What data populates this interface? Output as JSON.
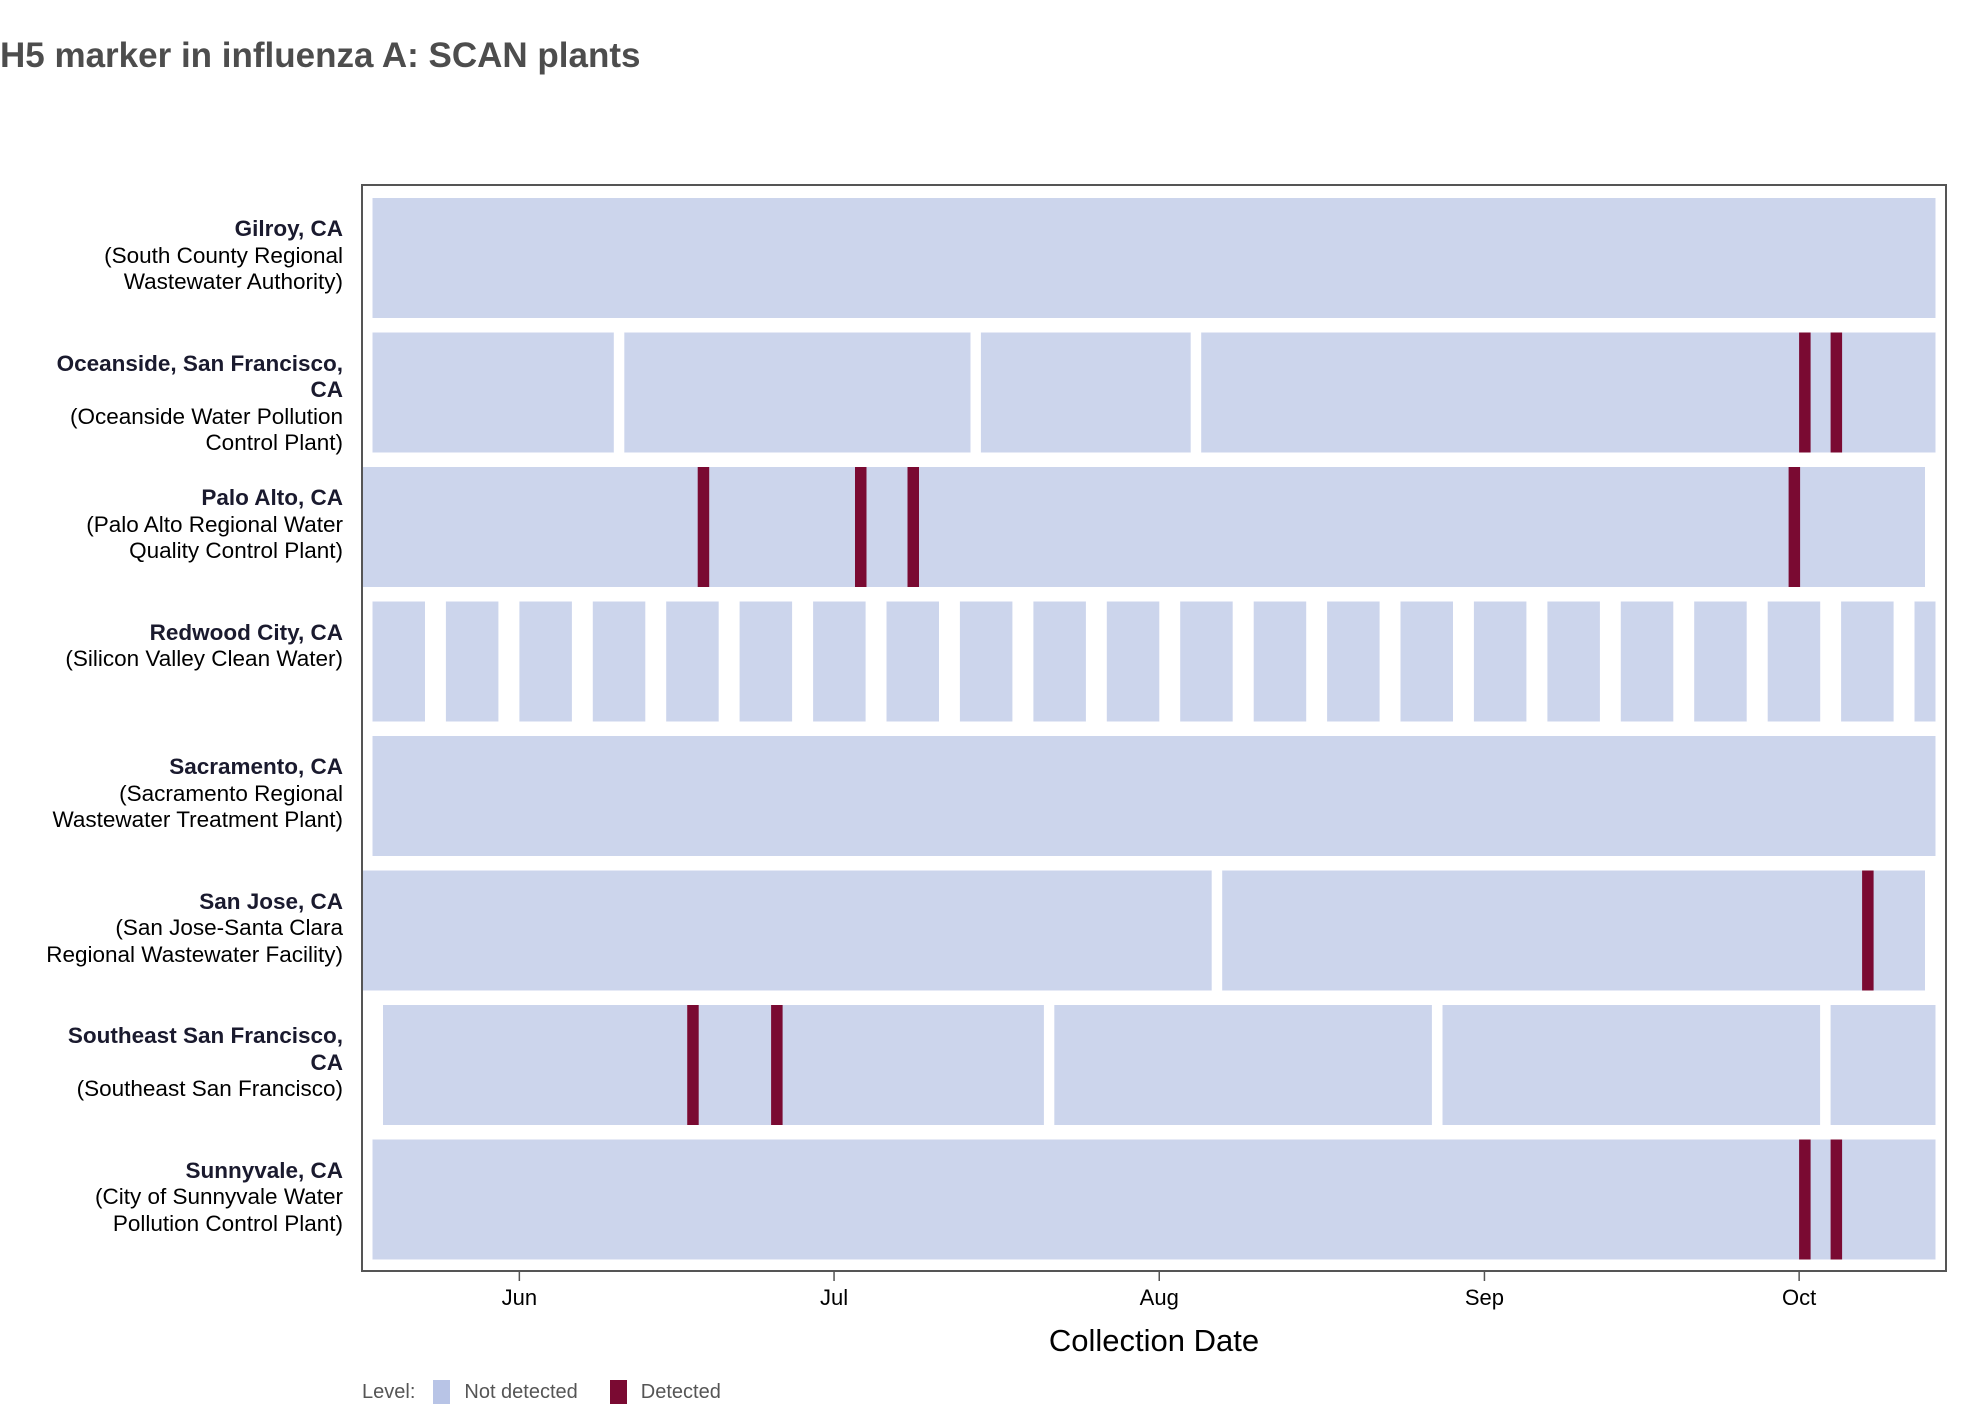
{
  "chart_data": {
    "type": "heatmap",
    "title": "H5 marker in influenza A: SCAN plants",
    "xlabel": "Collection Date",
    "x_domain": [
      "2024-05-17",
      "2024-10-15"
    ],
    "x_ticks": [
      {
        "date": "2024-06-01",
        "label": "Jun"
      },
      {
        "date": "2024-07-01",
        "label": "Jul"
      },
      {
        "date": "2024-08-01",
        "label": "Aug"
      },
      {
        "date": "2024-09-01",
        "label": "Sep"
      },
      {
        "date": "2024-10-01",
        "label": "Oct"
      }
    ],
    "legend": {
      "title": "Level:",
      "items": [
        {
          "label": "Not detected",
          "color": "#b8c4e6"
        },
        {
          "label": "Detected",
          "color": "#7a0a32"
        }
      ]
    },
    "colors": {
      "not_detected": "#ccd5ec",
      "detected": "#7a0a32",
      "frame": "#555555"
    },
    "rows": [
      {
        "site": "Gilroy, CA",
        "plant": "(South County Regional Wastewater Authority)",
        "blocks": [
          [
            "2024-05-18",
            "2024-10-14"
          ]
        ],
        "detected": []
      },
      {
        "site": "Oceanside, San Francisco, CA",
        "plant": "(Oceanside Water Pollution Control Plant)",
        "blocks": [
          [
            "2024-05-18",
            "2024-06-10"
          ],
          [
            "2024-06-11",
            "2024-07-14"
          ],
          [
            "2024-07-15",
            "2024-08-04"
          ],
          [
            "2024-08-05",
            "2024-10-14"
          ]
        ],
        "detected": [
          "2024-10-01",
          "2024-10-04"
        ]
      },
      {
        "site": "Palo Alto, CA",
        "plant": "(Palo Alto Regional Water Quality Control Plant)",
        "blocks": [
          [
            "2024-05-17",
            "2024-10-13"
          ]
        ],
        "detected": [
          "2024-06-18",
          "2024-07-03",
          "2024-07-08",
          "2024-09-30"
        ]
      },
      {
        "site": "Redwood City, CA",
        "plant": "(Silicon Valley Clean Water)",
        "blocks": "weekly",
        "detected": []
      },
      {
        "site": "Sacramento, CA",
        "plant": "(Sacramento Regional Wastewater Treatment Plant)",
        "blocks": [
          [
            "2024-05-18",
            "2024-10-14"
          ]
        ],
        "detected": []
      },
      {
        "site": "San Jose, CA",
        "plant": "(San Jose-Santa Clara Regional Wastewater Facility)",
        "blocks": [
          [
            "2024-05-17",
            "2024-08-06"
          ],
          [
            "2024-08-07",
            "2024-10-13"
          ]
        ],
        "detected": [
          "2024-10-07"
        ]
      },
      {
        "site": "Southeast San Francisco, CA",
        "plant": "(Southeast San Francisco)",
        "blocks": [
          [
            "2024-05-19",
            "2024-06-17"
          ],
          [
            "2024-06-18",
            "2024-07-21"
          ],
          [
            "2024-07-22",
            "2024-08-27"
          ],
          [
            "2024-08-28",
            "2024-10-03"
          ],
          [
            "2024-10-04",
            "2024-10-14"
          ]
        ],
        "detected": [
          "2024-06-17",
          "2024-06-25"
        ]
      },
      {
        "site": "Sunnyvale, CA",
        "plant": "(City of Sunnyvale Water Pollution Control Plant)",
        "blocks": [
          [
            "2024-05-18",
            "2024-10-14"
          ]
        ],
        "detected": [
          "2024-10-01",
          "2024-10-04"
        ]
      }
    ]
  }
}
